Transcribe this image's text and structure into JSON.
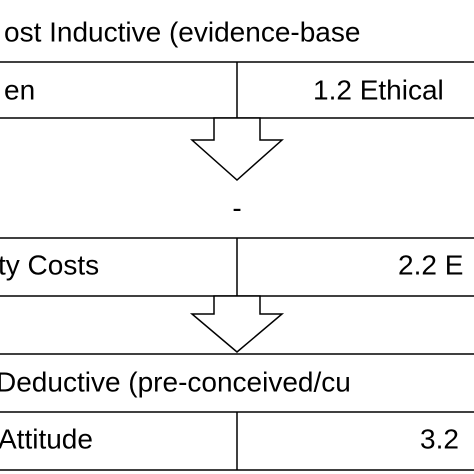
{
  "rows": [
    {
      "header": "ost Inductive (evidence-base"
    },
    {
      "left": "en",
      "right": "1.2 Ethical"
    },
    {
      "note": "-"
    },
    {
      "left": "ty Costs",
      "right": "2.2 E"
    },
    {
      "header": "Deductive (pre-conceived/cu"
    },
    {
      "left": "Attitude",
      "right": "3.2"
    }
  ]
}
